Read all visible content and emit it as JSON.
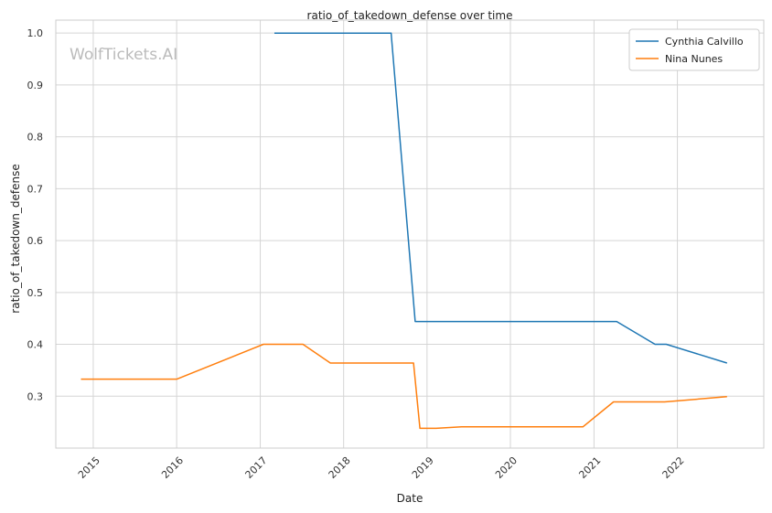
{
  "chart_data": {
    "type": "line",
    "title": "ratio_of_takedown_defense over time",
    "xlabel": "Date",
    "ylabel": "ratio_of_takedown_defense",
    "watermark": "WolfTickets.AI",
    "x_ticks": [
      "2015",
      "2016",
      "2017",
      "2018",
      "2019",
      "2020",
      "2021",
      "2022"
    ],
    "y_ticks": [
      "0.3",
      "0.4",
      "0.5",
      "0.6",
      "0.7",
      "0.8",
      "0.9",
      "1.0"
    ],
    "xlim": [
      "2014-07-21",
      "2023-01-14"
    ],
    "ylim": [
      0.2,
      1.025
    ],
    "grid": true,
    "legend_position": "top-right",
    "series": [
      {
        "name": "Cynthia Calvillo",
        "color": "#1f77b4",
        "points": [
          {
            "x": "2017-03-04",
            "y": 1.0
          },
          {
            "x": "2018-07-28",
            "y": 1.0
          },
          {
            "x": "2018-11-10",
            "y": 0.444
          },
          {
            "x": "2021-04-10",
            "y": 0.444
          },
          {
            "x": "2021-09-25",
            "y": 0.4
          },
          {
            "x": "2021-11-13",
            "y": 0.4
          },
          {
            "x": "2022-08-06",
            "y": 0.364
          }
        ]
      },
      {
        "name": "Nina Nunes",
        "color": "#ff7f0e",
        "points": [
          {
            "x": "2014-11-08",
            "y": 0.333
          },
          {
            "x": "2016-01-02",
            "y": 0.333
          },
          {
            "x": "2017-01-15",
            "y": 0.4
          },
          {
            "x": "2017-07-07",
            "y": 0.4
          },
          {
            "x": "2017-11-04",
            "y": 0.364
          },
          {
            "x": "2018-11-03",
            "y": 0.364
          },
          {
            "x": "2018-12-01",
            "y": 0.238
          },
          {
            "x": "2019-02-10",
            "y": 0.238
          },
          {
            "x": "2019-06-01",
            "y": 0.241
          },
          {
            "x": "2020-11-14",
            "y": 0.241
          },
          {
            "x": "2021-03-27",
            "y": 0.289
          },
          {
            "x": "2021-11-06",
            "y": 0.289
          },
          {
            "x": "2022-08-06",
            "y": 0.299
          }
        ]
      }
    ]
  }
}
